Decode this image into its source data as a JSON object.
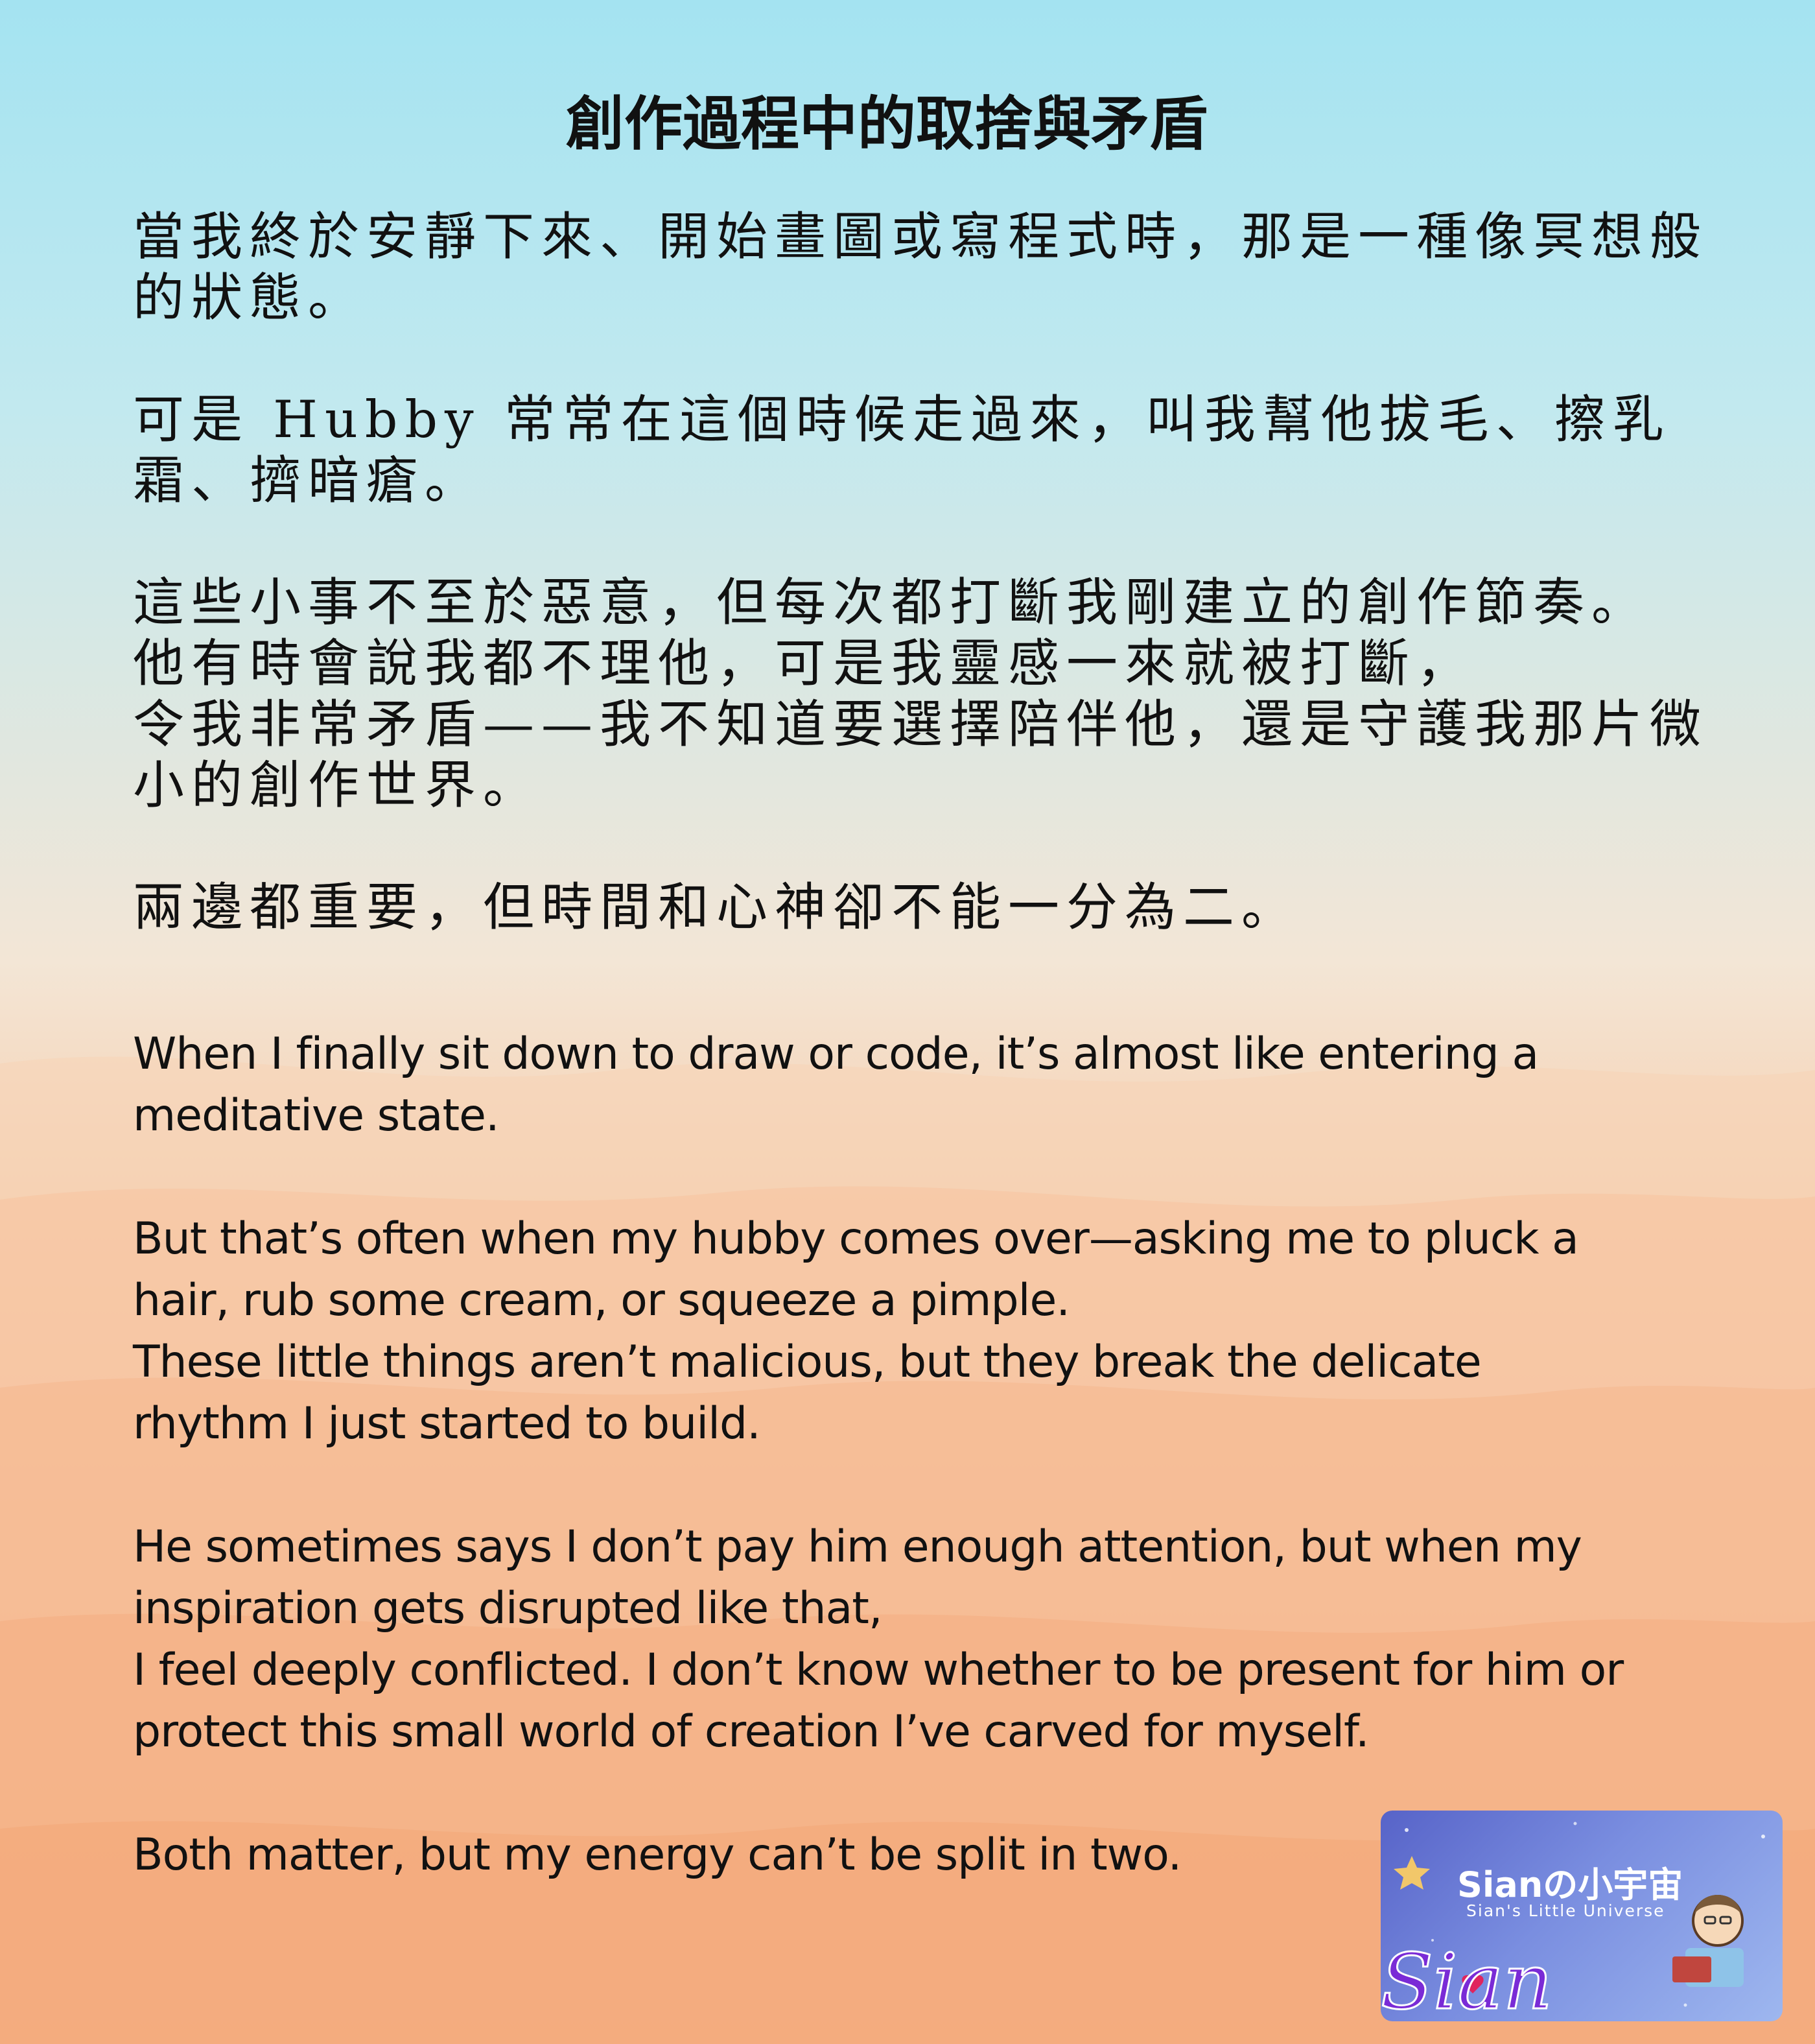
{
  "title": "創作過程中的取捨與矛盾",
  "zh_paragraphs": [
    "當我終於安靜下來、開始畫圖或寫程式時，那是一種像冥想般的狀態。",
    "可是 Hubby 常常在這個時候走過來，叫我幫他拔毛、擦乳霜、擠暗瘡。",
    "這些小事不至於惡意，但每次都打斷我剛建立的創作節奏。",
    "他有時會說我都不理他，可是我靈感一來就被打斷，",
    "令我非常矛盾——我不知道要選擇陪伴他，還是守護我那片微小的創作世界。",
    "兩邊都重要，但時間和心神卻不能一分為二。"
  ],
  "en_paragraphs": [
    "When I finally sit down to draw or code, it’s almost like entering a meditative state.",
    "But that’s often when my hubby comes over—asking me to pluck a hair, rub some cream, or squeeze a pimple.",
    "These little things aren’t malicious, but they break the delicate rhythm I just started to build.",
    "He sometimes says I don’t pay him enough attention, but when my inspiration gets disrupted like that,",
    "I feel deeply conflicted. I don’t know whether to be present for him or protect this small world of creation I’ve carved for myself.",
    "Both matter, but my energy can’t be split in two."
  ],
  "logo": {
    "main": "Sianの小宇宙",
    "sub": "Sian's Little Universe",
    "signature": "Sian"
  },
  "colors": {
    "sky_top": "#a4e3f1",
    "sand_bottom": "#f5a877",
    "text": "#111111",
    "logo_bg": "#6a7bd8",
    "signature": "#7a2bd6"
  }
}
